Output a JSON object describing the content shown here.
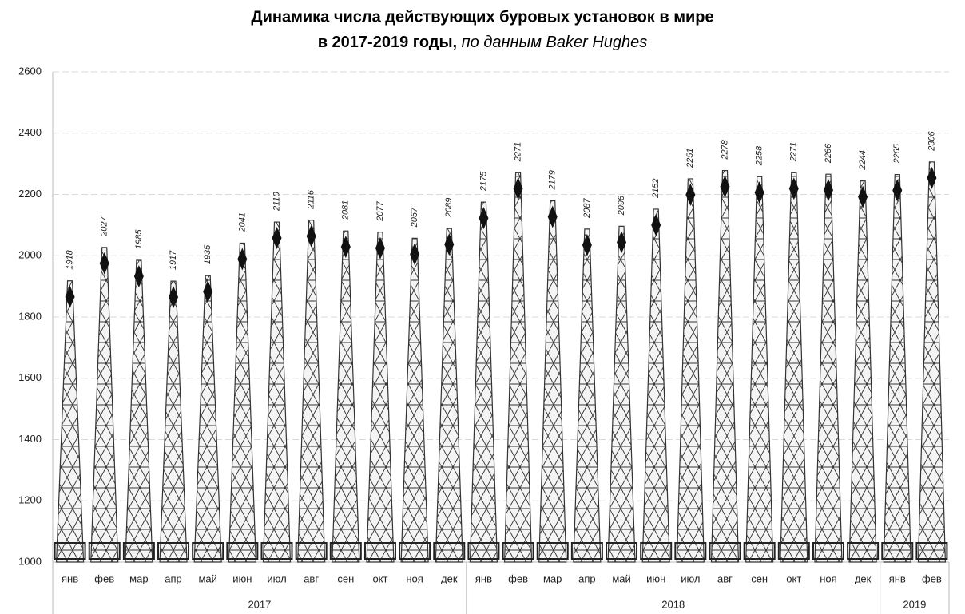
{
  "chart_data": {
    "type": "pictorial-bar",
    "title": "Динамика числа действующих буровых установок в мире",
    "subtitle": "в 2017-2019 годы,",
    "source": "по данным Baker Hughes",
    "categories": [
      "янв",
      "фев",
      "мар",
      "апр",
      "май",
      "июн",
      "июл",
      "авг",
      "сен",
      "окт",
      "ноя",
      "дек",
      "янв",
      "фев",
      "мар",
      "апр",
      "май",
      "июн",
      "июл",
      "авг",
      "сен",
      "окт",
      "ноя",
      "дек",
      "янв",
      "фев"
    ],
    "groups": [
      {
        "name": "2017",
        "size": 12
      },
      {
        "name": "2018",
        "size": 12
      },
      {
        "name": "2019",
        "size": 2
      }
    ],
    "values": [
      1918,
      2027,
      1985,
      1917,
      1935,
      2041,
      2110,
      2116,
      2081,
      2077,
      2057,
      2089,
      2175,
      2271,
      2179,
      2087,
      2096,
      2152,
      2251,
      2278,
      2258,
      2271,
      2266,
      2244,
      2265,
      2306
    ],
    "color": "#333333",
    "ylim": [
      1000,
      2600
    ],
    "yticks": [
      1000,
      1200,
      1400,
      1600,
      1800,
      2000,
      2200,
      2400,
      2600
    ],
    "grid": true
  }
}
